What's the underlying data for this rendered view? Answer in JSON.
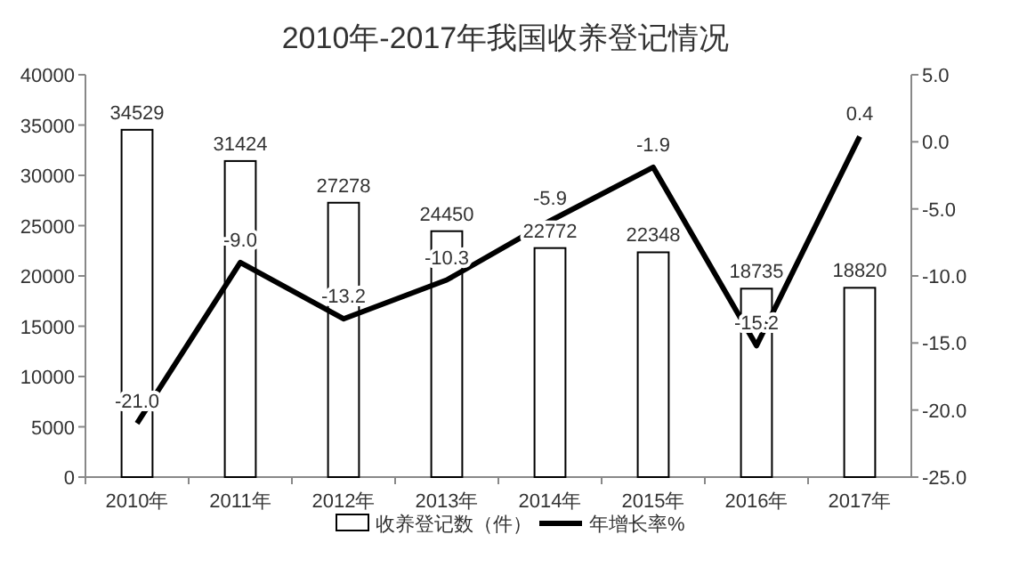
{
  "chart_data": {
    "type": "bar",
    "title": "2010年-2017年我国收养登记情况",
    "categories": [
      "2010年",
      "2011年",
      "2012年",
      "2013年",
      "2014年",
      "2015年",
      "2016年",
      "2017年"
    ],
    "series": [
      {
        "name": "收养登记数（件）",
        "color": "#ffffff",
        "values": [
          34529,
          31424,
          27278,
          24450,
          22772,
          22348,
          18735,
          18820
        ],
        "value_labels": [
          "34529",
          "31424",
          "27278",
          "24450",
          "22772",
          "22348",
          "18735",
          "18820"
        ]
      },
      {
        "name": "年增长率%",
        "type": "line",
        "axis": "y2",
        "color": "#000000",
        "values": [
          -21.0,
          -9.0,
          -13.2,
          -10.3,
          -5.9,
          -1.9,
          -15.2,
          0.4
        ],
        "value_labels": [
          "-21.0",
          "-9.0",
          "-13.2",
          "-10.3",
          "-5.9",
          "-1.9",
          "-15.2",
          "0.4"
        ]
      }
    ],
    "ylim": [
      0,
      40000
    ],
    "yticks": [
      0,
      5000,
      10000,
      15000,
      20000,
      25000,
      30000,
      35000,
      40000
    ],
    "y2lim": [
      -25,
      5
    ],
    "y2ticks": [
      {
        "value": 5,
        "label": "5.0"
      },
      {
        "value": 0,
        "label": "0.0"
      },
      {
        "value": -5,
        "label": "-5.0"
      },
      {
        "value": -10,
        "label": "-10.0"
      },
      {
        "value": -15,
        "label": "-15.0"
      },
      {
        "value": -20,
        "label": "-20.0"
      },
      {
        "value": -25,
        "label": "-25.0"
      }
    ],
    "legend": "bottom",
    "marker": "none",
    "grid": false
  }
}
